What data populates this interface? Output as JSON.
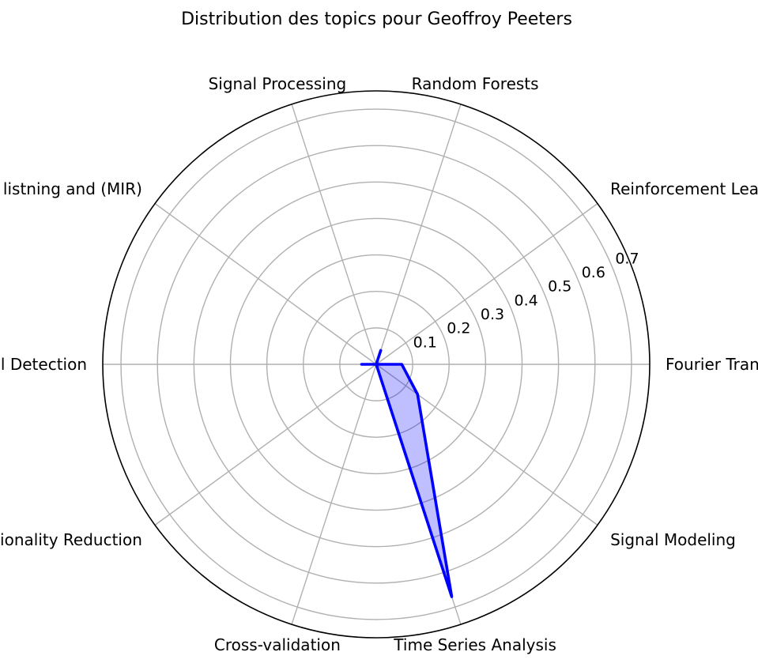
{
  "chart_data": {
    "type": "radar",
    "title": "Distribution des topics pour Geoffroy Peeters",
    "categories": [
      "Fourier Transform",
      "Reinforcement Learning",
      "Random Forests",
      "Signal Processing",
      "Machine listning and (MIR)",
      "Signal Detection",
      "Dimensionality Reduction",
      "Cross-validation",
      "Time Series Analysis",
      "Signal Modeling"
    ],
    "series": [
      {
        "values": [
          0.07,
          0.0,
          0.04,
          0.0,
          0.0,
          0.04,
          0.0,
          0.0,
          0.67,
          0.14
        ],
        "line_color": "#0000ff",
        "fill_color": "#0000ff",
        "fill_opacity": 0.25
      }
    ],
    "rlim": [
      0,
      0.75
    ],
    "r_ticks": [
      0.1,
      0.2,
      0.3,
      0.4,
      0.5,
      0.6,
      0.7
    ],
    "r_tick_labels": [
      "0.1",
      "0.2",
      "0.3",
      "0.4",
      "0.5",
      "0.6",
      "0.7"
    ],
    "grid": true,
    "grid_color": "#b0b0b0"
  }
}
